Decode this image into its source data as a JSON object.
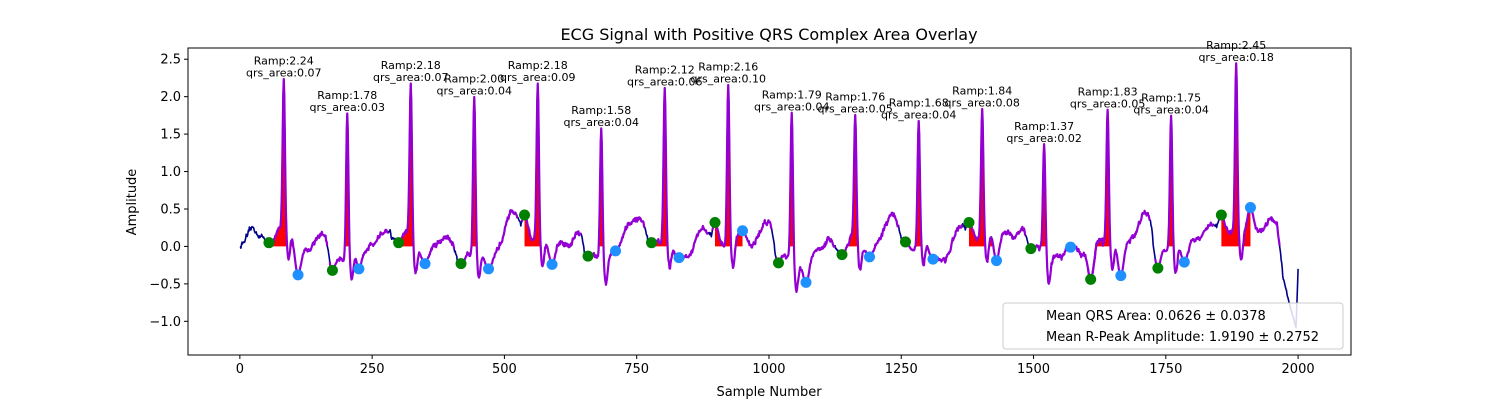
{
  "chart_data": {
    "type": "line",
    "title": "ECG Signal with Positive QRS Complex Area Overlay",
    "xlabel": "Sample Number",
    "ylabel": "Amplitude",
    "xlim": [
      -98,
      2100
    ],
    "ylim": [
      -1.45,
      2.65
    ],
    "xticks": [
      0,
      250,
      500,
      750,
      1000,
      1250,
      1500,
      1750,
      2000
    ],
    "yticks": [
      -1.0,
      -0.5,
      0.0,
      0.5,
      1.0,
      1.5,
      2.0,
      2.5
    ],
    "xtick_labels": [
      "0",
      "250",
      "500",
      "750",
      "1000",
      "1250",
      "1500",
      "1750",
      "2000"
    ],
    "ytick_labels": [
      "−1.0",
      "−0.5",
      "0.0",
      "0.5",
      "1.0",
      "1.5",
      "2.0",
      "2.5"
    ],
    "colors": {
      "signal": "#00008b",
      "qrs_segment": "#9400d3",
      "qrs_fill": "#ff0000",
      "q_point": "#008000",
      "s_point": "#1e90ff"
    },
    "beats": [
      {
        "r_x": 83,
        "r_amp": 2.24,
        "qrs_area": 0.07,
        "q_x": 55,
        "q_y": 0.05,
        "s_x": 110,
        "s_y": -0.38
      },
      {
        "r_x": 203,
        "r_amp": 1.78,
        "qrs_area": 0.03,
        "q_x": 175,
        "q_y": -0.32,
        "s_x": 225,
        "s_y": -0.3
      },
      {
        "r_x": 323,
        "r_amp": 2.18,
        "qrs_area": 0.07,
        "q_x": 300,
        "q_y": 0.05,
        "s_x": 350,
        "s_y": -0.23
      },
      {
        "r_x": 443,
        "r_amp": 2.0,
        "qrs_area": 0.04,
        "q_x": 418,
        "q_y": -0.23,
        "s_x": 470,
        "s_y": -0.3
      },
      {
        "r_x": 563,
        "r_amp": 2.18,
        "qrs_area": 0.09,
        "q_x": 538,
        "q_y": 0.42,
        "s_x": 590,
        "s_y": -0.24
      },
      {
        "r_x": 683,
        "r_amp": 1.58,
        "qrs_area": 0.04,
        "q_x": 658,
        "q_y": -0.13,
        "s_x": 710,
        "s_y": -0.06
      },
      {
        "r_x": 803,
        "r_amp": 2.12,
        "qrs_area": 0.06,
        "q_x": 778,
        "q_y": 0.05,
        "s_x": 830,
        "s_y": -0.15
      },
      {
        "r_x": 923,
        "r_amp": 2.16,
        "qrs_area": 0.1,
        "q_x": 898,
        "q_y": 0.32,
        "s_x": 950,
        "s_y": 0.21
      },
      {
        "r_x": 1043,
        "r_amp": 1.79,
        "qrs_area": 0.04,
        "q_x": 1018,
        "q_y": -0.22,
        "s_x": 1070,
        "s_y": -0.48
      },
      {
        "r_x": 1163,
        "r_amp": 1.76,
        "qrs_area": 0.05,
        "q_x": 1138,
        "q_y": -0.11,
        "s_x": 1190,
        "s_y": -0.14
      },
      {
        "r_x": 1283,
        "r_amp": 1.68,
        "qrs_area": 0.04,
        "q_x": 1258,
        "q_y": 0.06,
        "s_x": 1310,
        "s_y": -0.17
      },
      {
        "r_x": 1403,
        "r_amp": 1.84,
        "qrs_area": 0.08,
        "q_x": 1378,
        "q_y": 0.32,
        "s_x": 1430,
        "s_y": -0.19
      },
      {
        "r_x": 1520,
        "r_amp": 1.37,
        "qrs_area": 0.02,
        "q_x": 1495,
        "q_y": -0.03,
        "s_x": 1570,
        "s_y": -0.01
      },
      {
        "r_x": 1640,
        "r_amp": 1.83,
        "qrs_area": 0.05,
        "q_x": 1608,
        "q_y": -0.44,
        "s_x": 1665,
        "s_y": -0.39
      },
      {
        "r_x": 1760,
        "r_amp": 1.75,
        "qrs_area": 0.04,
        "q_x": 1735,
        "q_y": -0.29,
        "s_x": 1785,
        "s_y": -0.21
      },
      {
        "r_x": 1883,
        "r_amp": 2.45,
        "qrs_area": 0.18,
        "q_x": 1855,
        "q_y": 0.42,
        "s_x": 1910,
        "s_y": 0.52
      }
    ],
    "legend": {
      "placement": "lower-right",
      "entries": [
        "Mean QRS Area: 0.0626 ± 0.0378",
        "Mean R-Peak Amplitude: 1.9190 ± 0.2752"
      ]
    }
  }
}
